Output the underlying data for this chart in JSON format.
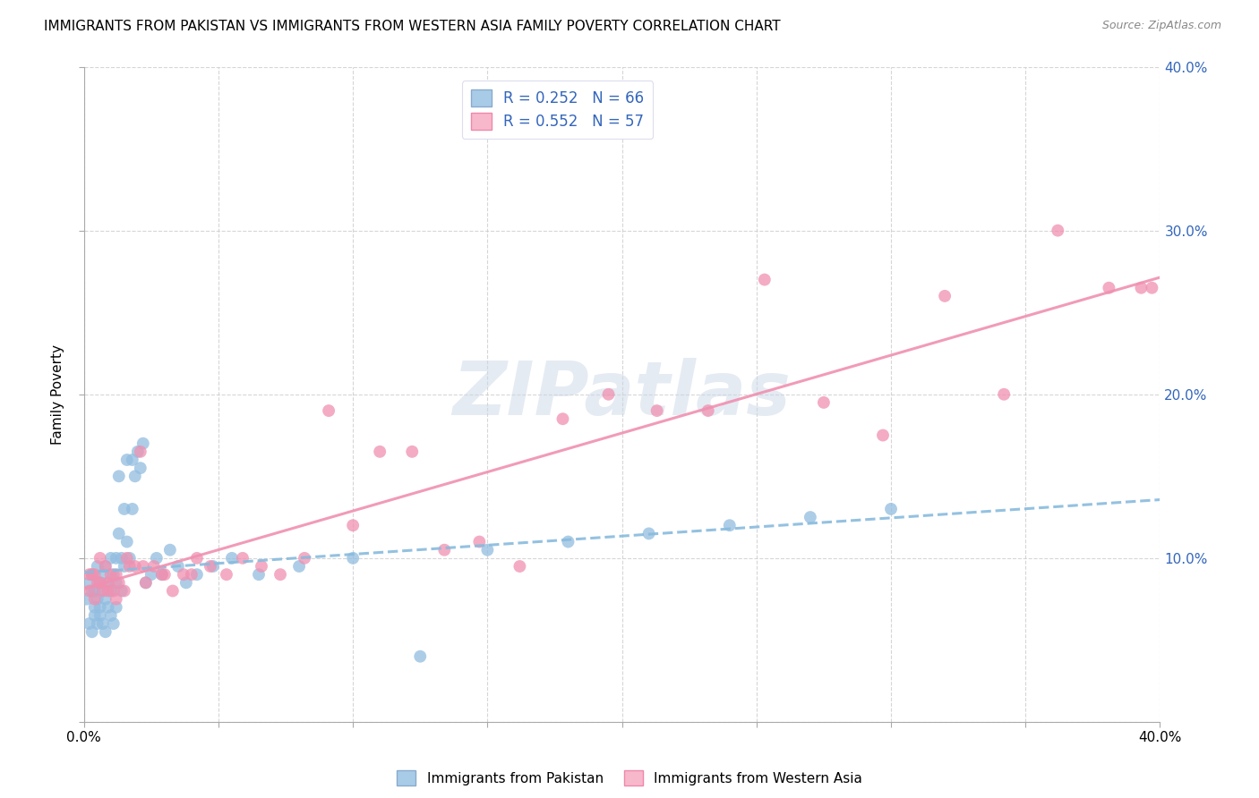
{
  "title": "IMMIGRANTS FROM PAKISTAN VS IMMIGRANTS FROM WESTERN ASIA FAMILY POVERTY CORRELATION CHART",
  "source": "Source: ZipAtlas.com",
  "ylabel": "Family Poverty",
  "xlim": [
    0,
    0.4
  ],
  "ylim": [
    0,
    0.4
  ],
  "legend_R1": "R = 0.252",
  "legend_N1": "N = 66",
  "legend_R2": "R = 0.552",
  "legend_N2": "N = 57",
  "pakistan_scatter_color": "#92bde0",
  "western_asia_scatter_color": "#f090b0",
  "pakistan_legend_color": "#a8cce8",
  "western_asia_legend_color": "#f8b8cc",
  "trend_pakistan_color": "#88bbdd",
  "trend_western_asia_color": "#f090b0",
  "watermark_color": "#ccd8e8",
  "legend_text_color": "#3366bb",
  "right_axis_color": "#3366bb",
  "pakistan_x": [
    0.001,
    0.002,
    0.002,
    0.003,
    0.003,
    0.003,
    0.004,
    0.004,
    0.004,
    0.005,
    0.005,
    0.005,
    0.006,
    0.006,
    0.006,
    0.007,
    0.007,
    0.007,
    0.008,
    0.008,
    0.008,
    0.009,
    0.009,
    0.01,
    0.01,
    0.01,
    0.011,
    0.011,
    0.012,
    0.012,
    0.012,
    0.013,
    0.013,
    0.014,
    0.014,
    0.015,
    0.015,
    0.016,
    0.016,
    0.017,
    0.018,
    0.018,
    0.019,
    0.02,
    0.021,
    0.022,
    0.023,
    0.025,
    0.027,
    0.029,
    0.032,
    0.035,
    0.038,
    0.042,
    0.048,
    0.055,
    0.065,
    0.08,
    0.1,
    0.125,
    0.15,
    0.18,
    0.21,
    0.24,
    0.27,
    0.3
  ],
  "pakistan_y": [
    0.075,
    0.06,
    0.085,
    0.055,
    0.08,
    0.09,
    0.065,
    0.07,
    0.08,
    0.06,
    0.075,
    0.095,
    0.07,
    0.085,
    0.065,
    0.06,
    0.08,
    0.09,
    0.055,
    0.075,
    0.095,
    0.07,
    0.085,
    0.065,
    0.08,
    0.1,
    0.06,
    0.09,
    0.07,
    0.085,
    0.1,
    0.115,
    0.15,
    0.08,
    0.1,
    0.095,
    0.13,
    0.11,
    0.16,
    0.1,
    0.13,
    0.16,
    0.15,
    0.165,
    0.155,
    0.17,
    0.085,
    0.09,
    0.1,
    0.09,
    0.105,
    0.095,
    0.085,
    0.09,
    0.095,
    0.1,
    0.09,
    0.095,
    0.1,
    0.04,
    0.105,
    0.11,
    0.115,
    0.12,
    0.125,
    0.13
  ],
  "western_asia_x": [
    0.002,
    0.003,
    0.004,
    0.005,
    0.006,
    0.007,
    0.008,
    0.009,
    0.01,
    0.011,
    0.012,
    0.013,
    0.015,
    0.017,
    0.019,
    0.021,
    0.023,
    0.026,
    0.029,
    0.033,
    0.037,
    0.042,
    0.047,
    0.053,
    0.059,
    0.066,
    0.073,
    0.082,
    0.091,
    0.1,
    0.11,
    0.122,
    0.134,
    0.147,
    0.162,
    0.178,
    0.195,
    0.213,
    0.232,
    0.253,
    0.275,
    0.297,
    0.32,
    0.342,
    0.362,
    0.381,
    0.393,
    0.397,
    0.002,
    0.004,
    0.006,
    0.009,
    0.012,
    0.016,
    0.022,
    0.03,
    0.04
  ],
  "western_asia_y": [
    0.08,
    0.09,
    0.075,
    0.085,
    0.1,
    0.08,
    0.095,
    0.085,
    0.09,
    0.08,
    0.075,
    0.085,
    0.08,
    0.095,
    0.095,
    0.165,
    0.085,
    0.095,
    0.09,
    0.08,
    0.09,
    0.1,
    0.095,
    0.09,
    0.1,
    0.095,
    0.09,
    0.1,
    0.19,
    0.12,
    0.165,
    0.165,
    0.105,
    0.11,
    0.095,
    0.185,
    0.2,
    0.19,
    0.19,
    0.27,
    0.195,
    0.175,
    0.26,
    0.2,
    0.3,
    0.265,
    0.265,
    0.265,
    0.09,
    0.09,
    0.085,
    0.08,
    0.09,
    0.1,
    0.095,
    0.09,
    0.09
  ]
}
